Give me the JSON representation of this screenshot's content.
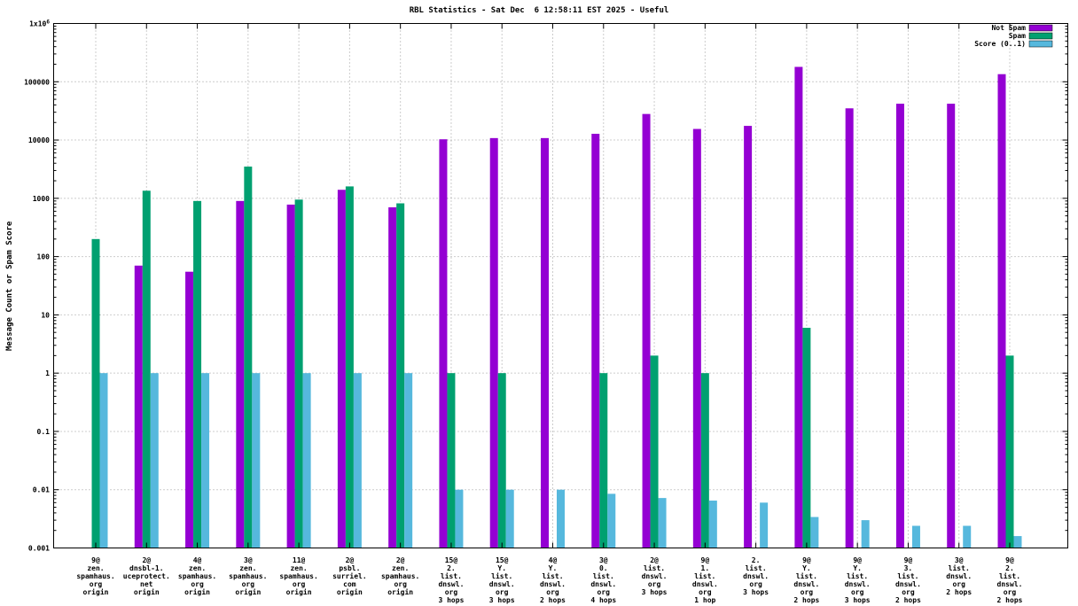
{
  "title": "RBL Statistics - Sat Dec  6 12:58:11 EST 2025 - Useful",
  "ylabel": "Message Count or Spam Score",
  "chart_data": {
    "type": "bar",
    "y_scale": "log",
    "ylim": [
      0.001,
      1000000
    ],
    "grid": true,
    "legend_position": "top-right",
    "y_tick_labels": [
      "0.001",
      "0.01",
      "0.1",
      "1",
      "10",
      "100",
      "1000",
      "10000",
      "100000",
      "1x10^6"
    ],
    "categories": [
      [
        "9@",
        "zen.",
        "spamhaus.",
        "org",
        "origin"
      ],
      [
        "2@",
        "dnsbl-1.",
        "uceprotect.",
        "net",
        "origin"
      ],
      [
        "4@",
        "zen.",
        "spamhaus.",
        "org",
        "origin"
      ],
      [
        "3@",
        "zen.",
        "spamhaus.",
        "org",
        "origin"
      ],
      [
        "11@",
        "zen.",
        "spamhaus.",
        "org",
        "origin"
      ],
      [
        "2@",
        "psbl.",
        "surriel.",
        "com",
        "origin"
      ],
      [
        "2@",
        "zen.",
        "spamhaus.",
        "org",
        "origin"
      ],
      [
        "15@",
        "2.",
        "list.",
        "dnswl.",
        "org",
        "3 hops"
      ],
      [
        "15@",
        "Y.",
        "list.",
        "dnswl.",
        "org",
        "3 hops"
      ],
      [
        "4@",
        "Y.",
        "list.",
        "dnswl.",
        "org",
        "2 hops"
      ],
      [
        "3@",
        "0.",
        "list.",
        "dnswl.",
        "org",
        "4 hops"
      ],
      [
        "2@",
        "list.",
        "dnswl.",
        "org",
        "3 hops"
      ],
      [
        "9@",
        "1.",
        "list.",
        "dnswl.",
        "org",
        "1 hop"
      ],
      [
        "2.",
        "list.",
        "dnswl.",
        "org",
        "3 hops"
      ],
      [
        "9@",
        "Y.",
        "list.",
        "dnswl.",
        "org",
        "2 hops"
      ],
      [
        "9@",
        "Y.",
        "list.",
        "dnswl.",
        "org",
        "3 hops"
      ],
      [
        "9@",
        "3.",
        "list.",
        "dnswl.",
        "org",
        "2 hops"
      ],
      [
        "3@",
        "list.",
        "dnswl.",
        "org",
        "2 hops"
      ],
      [
        "9@",
        "2.",
        "list.",
        "dnswl.",
        "org",
        "2 hops"
      ]
    ],
    "series": [
      {
        "name": "Not Spam",
        "color": "#9400d3",
        "values": [
          null,
          70,
          55,
          900,
          780,
          1400,
          700,
          10300,
          10800,
          10800,
          12800,
          28000,
          15500,
          17500,
          180000,
          35000,
          42000,
          42000,
          135000
        ]
      },
      {
        "name": "Spam",
        "color": "#00a070",
        "values": [
          200,
          1350,
          900,
          3500,
          950,
          1600,
          820,
          1,
          1,
          null,
          1,
          2,
          1,
          null,
          6,
          null,
          null,
          null,
          2
        ]
      },
      {
        "name": "Score (0..1)",
        "color": "#56b8dd",
        "values": [
          1,
          1,
          1,
          1,
          1,
          1,
          1,
          0.01,
          0.01,
          0.01,
          0.0085,
          0.0072,
          0.0065,
          0.006,
          0.0034,
          0.003,
          0.0024,
          0.0024,
          0.0016
        ]
      }
    ]
  }
}
